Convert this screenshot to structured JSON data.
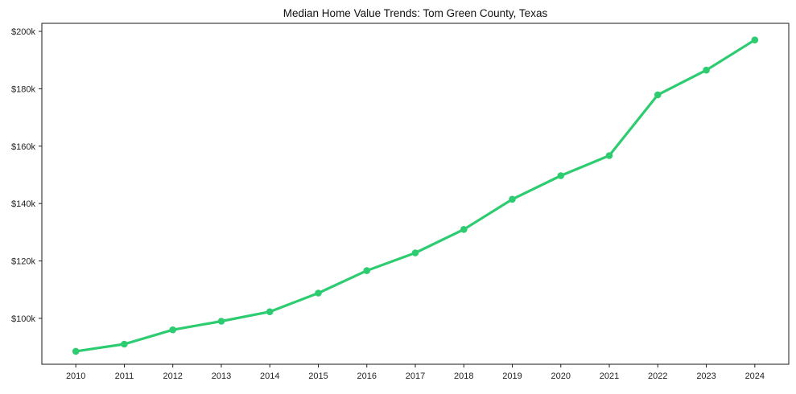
{
  "chart_data": {
    "type": "line",
    "title": "Median Home Value Trends: Tom Green County, Texas",
    "xlabel": "",
    "ylabel": "",
    "x": [
      2010,
      2011,
      2012,
      2013,
      2014,
      2015,
      2016,
      2017,
      2018,
      2019,
      2020,
      2021,
      2022,
      2023,
      2024
    ],
    "series": [
      {
        "name": "Median Home Value",
        "values": [
          88500,
          91000,
          96000,
          99000,
          102300,
          108800,
          116600,
          122800,
          131000,
          141500,
          149700,
          156700,
          177900,
          186500,
          197000
        ]
      }
    ],
    "xtick_labels": [
      "2010",
      "2011",
      "2012",
      "2013",
      "2014",
      "2015",
      "2016",
      "2017",
      "2018",
      "2019",
      "2020",
      "2021",
      "2022",
      "2023",
      "2024"
    ],
    "yticks": [
      100000,
      120000,
      140000,
      160000,
      180000,
      200000
    ],
    "ytick_labels": [
      "$100k",
      "$120k",
      "$140k",
      "$160k",
      "$180k",
      "$200k"
    ],
    "xlim": [
      2009.3,
      2024.7
    ],
    "ylim": [
      84000,
      202800
    ],
    "grid": false,
    "legend": false,
    "line_color": "#2ecc71",
    "marker": "circle",
    "marker_radius": 4.3,
    "line_width": 3.2,
    "background_color": "#ffffff",
    "spine_color": "#1a1a1a",
    "text_color": "#111111"
  }
}
